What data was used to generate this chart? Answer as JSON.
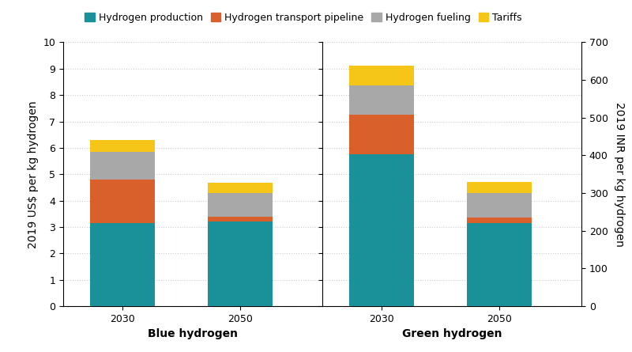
{
  "categories": {
    "Blue hydrogen": [
      "2030",
      "2050"
    ],
    "Green hydrogen": [
      "2030",
      "2050"
    ]
  },
  "segments": [
    "Hydrogen production",
    "Hydrogen transport pipeline",
    "Hydrogen fueling",
    "Tariffs"
  ],
  "colors": [
    "#1a9098",
    "#d95f2b",
    "#a8a8a8",
    "#f5c518"
  ],
  "values": {
    "Blue hydrogen": {
      "2030": [
        3.15,
        1.65,
        1.05,
        0.45
      ],
      "2050": [
        3.2,
        0.18,
        0.9,
        0.4
      ]
    },
    "Green hydrogen": {
      "2030": [
        5.75,
        1.5,
        1.1,
        0.75
      ],
      "2050": [
        3.15,
        0.2,
        0.95,
        0.4
      ]
    }
  },
  "ylabel_left": "2019 US$ per kg hydrogen",
  "ylabel_right": "2019 INR per kg hydrogen",
  "ylim_left": [
    0,
    10
  ],
  "ylim_right": [
    0,
    700
  ],
  "yticks_left": [
    0,
    1,
    2,
    3,
    4,
    5,
    6,
    7,
    8,
    9,
    10
  ],
  "yticks_right": [
    0,
    100,
    200,
    300,
    400,
    500,
    600,
    700
  ],
  "group_labels": [
    "Blue hydrogen",
    "Green hydrogen"
  ],
  "bar_width": 0.55,
  "background_color": "#ffffff",
  "grid_color": "#cccccc",
  "label_fontsize": 10,
  "tick_fontsize": 9,
  "legend_fontsize": 9
}
